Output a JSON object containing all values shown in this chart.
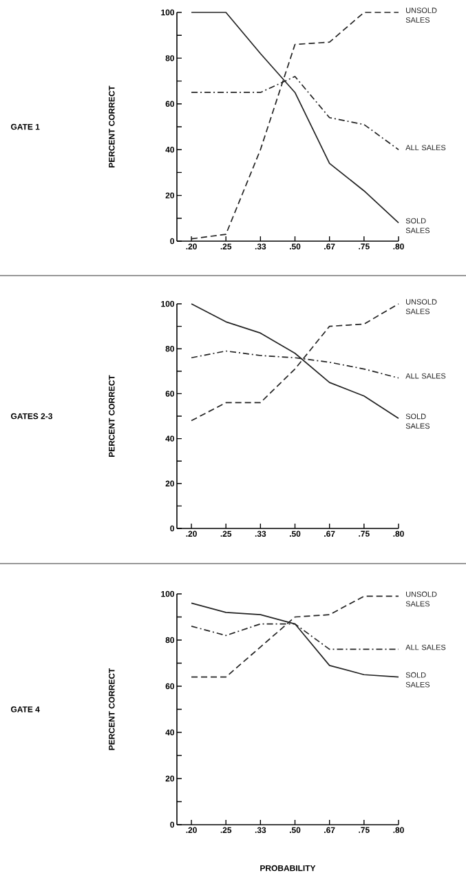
{
  "chart_data": [
    {
      "type": "line",
      "annotations": [
        "GATE 1"
      ],
      "ylabel": "PERCENT CORRECT",
      "categories": [
        ".20",
        ".25",
        ".33",
        ".50",
        ".67",
        ".75",
        ".80"
      ],
      "ylim": [
        0,
        100
      ],
      "yticks": [
        0,
        {
          "value": 10,
          "label": null
        },
        20,
        {
          "value": 30,
          "label": null
        },
        40,
        {
          "value": 50,
          "label": null
        },
        60,
        {
          "value": 70,
          "label": null
        },
        80,
        {
          "value": 90,
          "label": null
        },
        100
      ],
      "series": [
        {
          "name": "UNSOLD SALES",
          "color": "#222222",
          "line_style": "dashed",
          "values": [
            1,
            3,
            40,
            86,
            87,
            100,
            100
          ]
        },
        {
          "name": "ALL SALES",
          "color": "#222222",
          "line_style": "dashdot",
          "values": [
            65,
            65,
            65,
            72,
            54,
            51,
            40
          ]
        },
        {
          "name": "SOLD SALES",
          "color": "#222222",
          "line_style": "solid",
          "values": [
            100,
            100,
            82,
            65,
            34,
            22,
            8
          ]
        }
      ]
    },
    {
      "type": "line",
      "annotations": [
        "GATES 2-3"
      ],
      "ylabel": "PERCENT CORRECT",
      "categories": [
        ".20",
        ".25",
        ".33",
        ".50",
        ".67",
        ".75",
        ".80"
      ],
      "ylim": [
        0,
        100
      ],
      "yticks": [
        0,
        {
          "value": 10,
          "label": null
        },
        20,
        {
          "value": 30,
          "label": null
        },
        40,
        {
          "value": 50,
          "label": null
        },
        60,
        {
          "value": 70,
          "label": null
        },
        80,
        {
          "value": 90,
          "label": null
        },
        100
      ],
      "series": [
        {
          "name": "UNSOLD SALES",
          "color": "#222222",
          "line_style": "dashed",
          "values": [
            48,
            56,
            56,
            71,
            90,
            91,
            100
          ]
        },
        {
          "name": "ALL SALES",
          "color": "#222222",
          "line_style": "dashdot",
          "values": [
            76,
            79,
            77,
            76,
            74,
            71,
            67
          ]
        },
        {
          "name": "SOLD SALES",
          "color": "#222222",
          "line_style": "solid",
          "values": [
            100,
            92,
            87,
            78,
            65,
            59,
            49
          ]
        }
      ]
    },
    {
      "type": "line",
      "annotations": [
        "GATE 4"
      ],
      "ylabel": "PERCENT CORRECT",
      "xlabel": "PROBABILITY",
      "categories": [
        ".20",
        ".25",
        ".33",
        ".50",
        ".67",
        ".75",
        ".80"
      ],
      "ylim": [
        0,
        100
      ],
      "yticks": [
        0,
        {
          "value": 10,
          "label": null
        },
        20,
        {
          "value": 30,
          "label": null
        },
        40,
        {
          "value": 50,
          "label": null
        },
        60,
        {
          "value": 70,
          "label": null
        },
        80,
        {
          "value": 90,
          "label": null
        },
        100
      ],
      "series": [
        {
          "name": "UNSOLD SALES",
          "color": "#222222",
          "line_style": "dashed",
          "values": [
            64,
            64,
            77,
            90,
            91,
            99,
            99
          ]
        },
        {
          "name": "ALL SALES",
          "color": "#222222",
          "line_style": "dashdot",
          "values": [
            86,
            82,
            87,
            87,
            76,
            76,
            76
          ]
        },
        {
          "name": "SOLD SALES",
          "color": "#222222",
          "line_style": "solid",
          "values": [
            96,
            92,
            91,
            87,
            69,
            65,
            64
          ]
        }
      ]
    }
  ]
}
